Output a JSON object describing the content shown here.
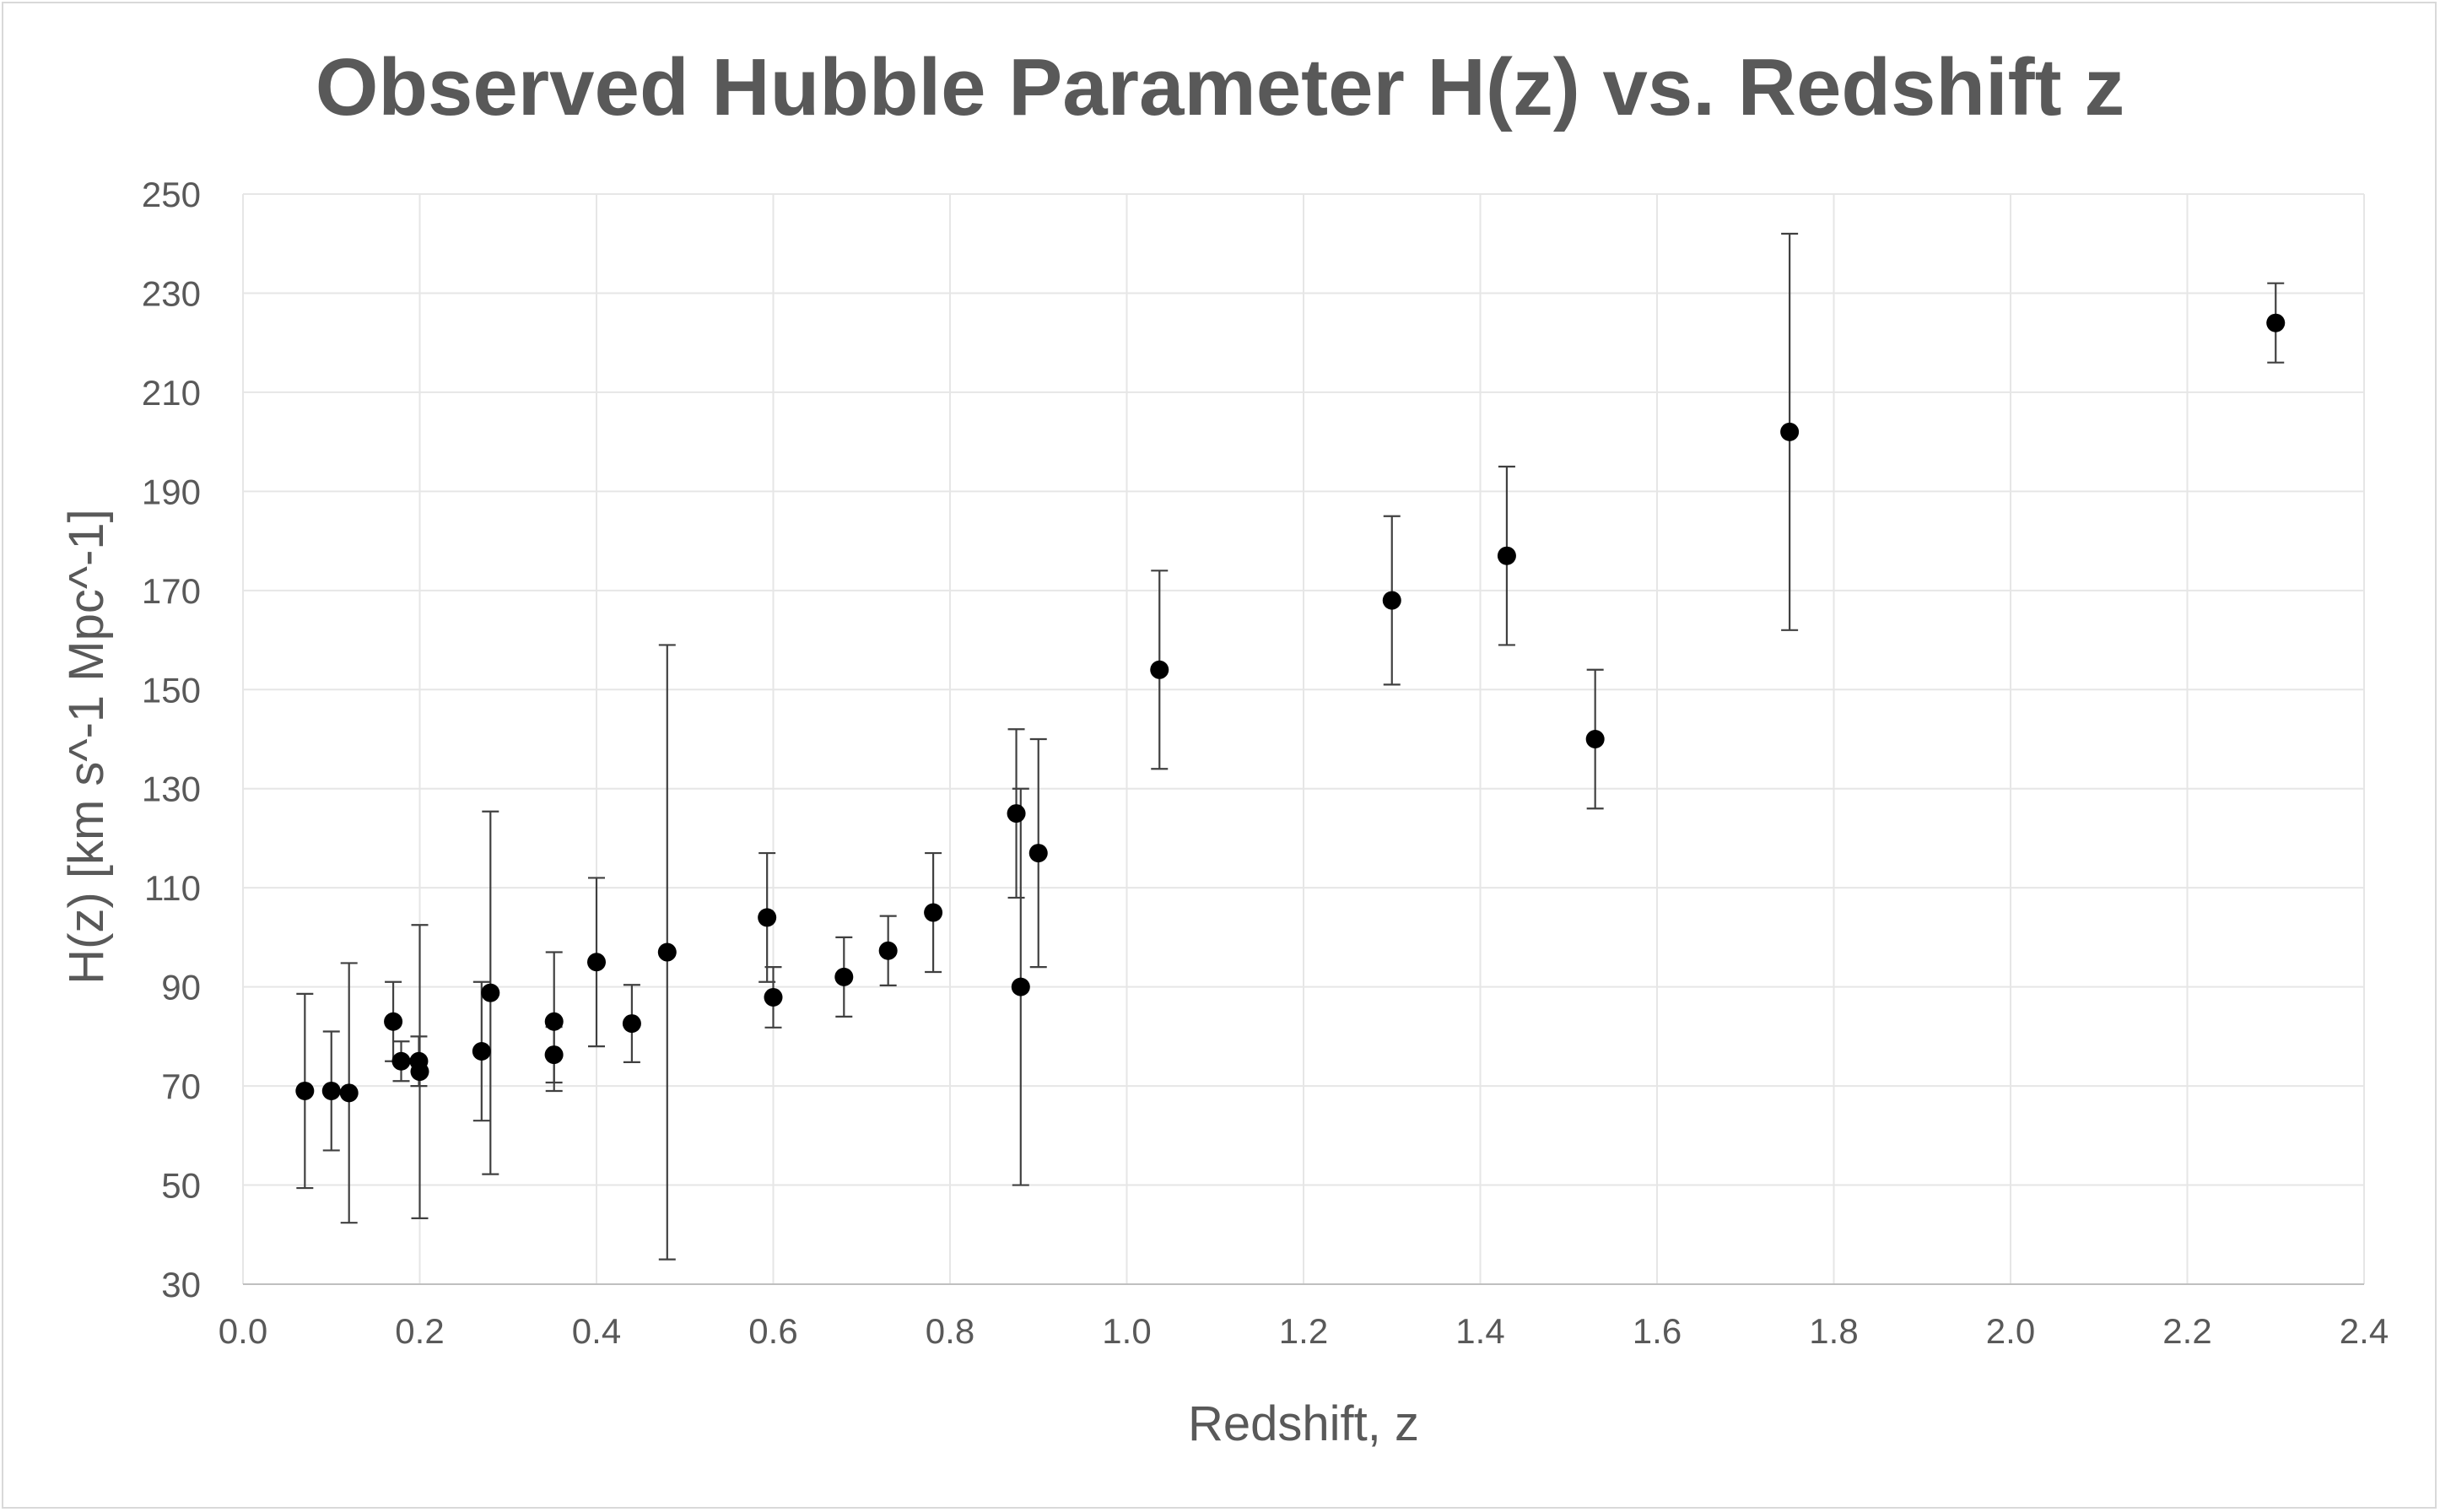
{
  "chart_data": {
    "type": "scatter",
    "title": "Observed Hubble Parameter H(z) vs. Redshift z",
    "xlabel": "Redshift, z",
    "ylabel": "H(z) [km s^-1 Mpc^-1]",
    "xlim": [
      0.0,
      2.4
    ],
    "ylim": [
      30,
      250
    ],
    "x_ticks": [
      "0.0",
      "0.2",
      "0.4",
      "0.6",
      "0.8",
      "1.0",
      "1.2",
      "1.4",
      "1.6",
      "1.8",
      "2.0",
      "2.2",
      "2.4"
    ],
    "y_ticks": [
      "30",
      "50",
      "70",
      "90",
      "110",
      "130",
      "150",
      "170",
      "190",
      "210",
      "230",
      "250"
    ],
    "grid": true,
    "legend": "none",
    "marker_color": "#000000",
    "errorbar_color": "#404040",
    "points": [
      {
        "x": 0.07,
        "y": 69,
        "err": 19.6
      },
      {
        "x": 0.1,
        "y": 69,
        "err": 12
      },
      {
        "x": 0.12,
        "y": 68.6,
        "err": 26.2
      },
      {
        "x": 0.17,
        "y": 83,
        "err": 8
      },
      {
        "x": 0.179,
        "y": 75,
        "err": 4
      },
      {
        "x": 0.199,
        "y": 75,
        "err": 5
      },
      {
        "x": 0.2,
        "y": 72.9,
        "err": 29.6
      },
      {
        "x": 0.27,
        "y": 77,
        "err": 14
      },
      {
        "x": 0.28,
        "y": 88.8,
        "err": 36.6
      },
      {
        "x": 0.352,
        "y": 83,
        "err": 14
      },
      {
        "x": 0.3519,
        "y": 76.3,
        "err": 5.6
      },
      {
        "x": 0.4,
        "y": 95,
        "err": 17
      },
      {
        "x": 0.44,
        "y": 82.6,
        "err": 7.8
      },
      {
        "x": 0.48,
        "y": 97,
        "err": 62
      },
      {
        "x": 0.593,
        "y": 104,
        "err": 13
      },
      {
        "x": 0.6,
        "y": 87.9,
        "err": 6.1
      },
      {
        "x": 0.68,
        "y": 92,
        "err": 8
      },
      {
        "x": 0.73,
        "y": 97.3,
        "err": 7
      },
      {
        "x": 0.781,
        "y": 105,
        "err": 12
      },
      {
        "x": 0.875,
        "y": 125,
        "err": 17
      },
      {
        "x": 0.88,
        "y": 90,
        "err": 40
      },
      {
        "x": 0.9,
        "y": 117,
        "err": 23
      },
      {
        "x": 1.037,
        "y": 154,
        "err": 20
      },
      {
        "x": 1.3,
        "y": 168,
        "err": 17
      },
      {
        "x": 1.43,
        "y": 177,
        "err": 18
      },
      {
        "x": 1.53,
        "y": 140,
        "err": 14
      },
      {
        "x": 1.75,
        "y": 202,
        "err": 40
      },
      {
        "x": 2.3,
        "y": 224,
        "err": 8
      }
    ]
  }
}
